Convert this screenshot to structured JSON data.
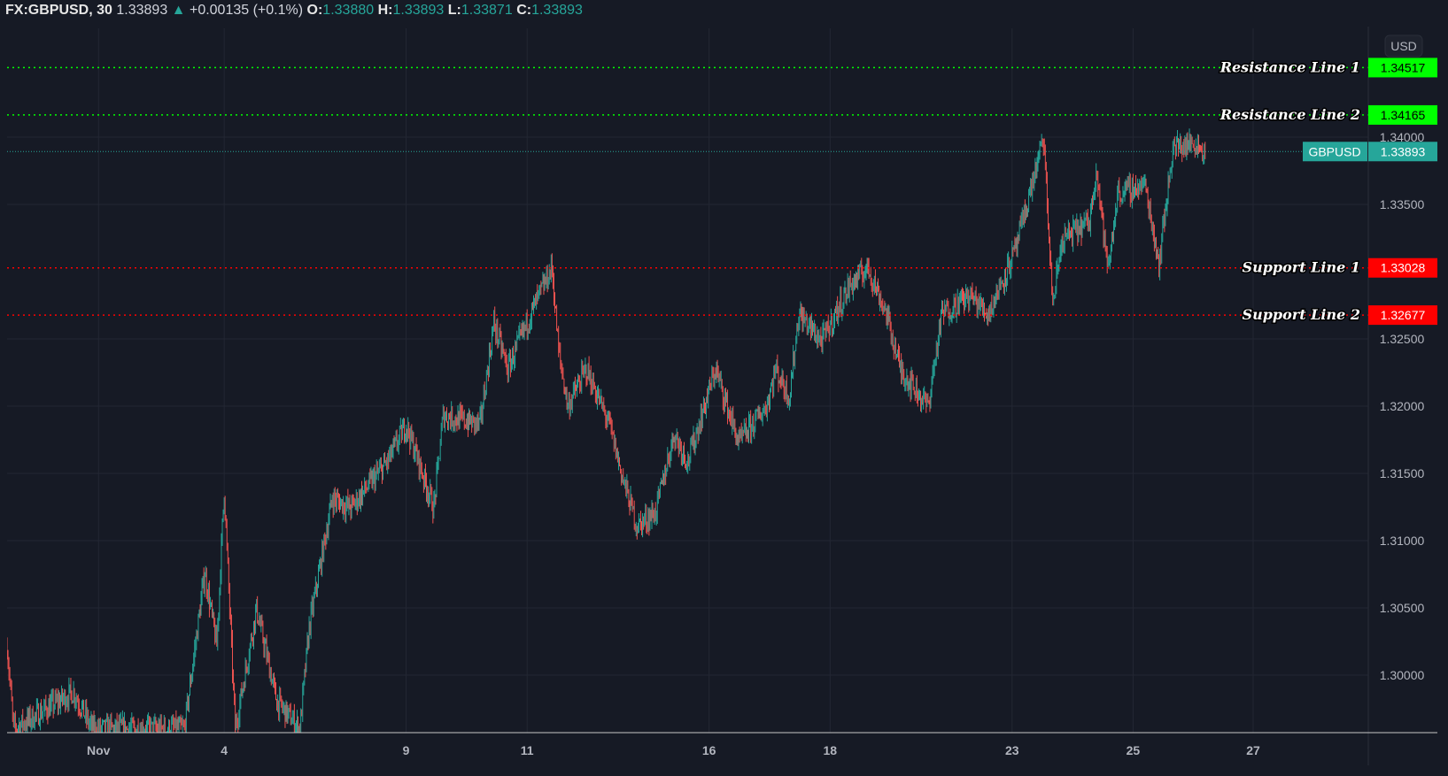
{
  "legend": {
    "symbol": "FX:GBPUSD, 30",
    "last": "1.33893",
    "change": "+0.00135 (+0.1%)",
    "o_label": "O:",
    "o": "1.33880",
    "h_label": "H:",
    "h": "1.33893",
    "l_label": "L:",
    "l": "1.33871",
    "c_label": "C:",
    "c": "1.33893"
  },
  "currency_button": "USD",
  "colors": {
    "up": "#26a69a",
    "down": "#ef5350",
    "resistance": "#00ff00",
    "support": "#ff0000",
    "current": "#26a69a"
  },
  "chart_data": {
    "type": "candlestick",
    "title": "FX:GBPUSD, 30",
    "ylim": [
      1.2957,
      1.3497
    ],
    "yticks": [
      "1.34000",
      "1.33500",
      "1.32500",
      "1.32000",
      "1.31500",
      "1.31000",
      "1.30500",
      "1.30000"
    ],
    "xrange_bars": [
      0,
      1440
    ],
    "xticks": [
      {
        "bar": 99,
        "label": "Nov"
      },
      {
        "bar": 235,
        "label": "4"
      },
      {
        "bar": 432,
        "label": "9"
      },
      {
        "bar": 563,
        "label": "11"
      },
      {
        "bar": 760,
        "label": "16"
      },
      {
        "bar": 891,
        "label": "18"
      },
      {
        "bar": 1088,
        "label": "23"
      },
      {
        "bar": 1219,
        "label": "25"
      },
      {
        "bar": 1349,
        "label": "27"
      }
    ],
    "price_path": [
      [
        0,
        1.30216
      ],
      [
        7,
        1.29599
      ],
      [
        72,
        1.29873
      ],
      [
        92,
        1.29599
      ],
      [
        192,
        1.29599
      ],
      [
        214,
        1.30765
      ],
      [
        227,
        1.30216
      ],
      [
        235,
        1.31383
      ],
      [
        247,
        1.29599
      ],
      [
        270,
        1.30491
      ],
      [
        292,
        1.29805
      ],
      [
        317,
        1.29599
      ],
      [
        327,
        1.30354
      ],
      [
        352,
        1.31314
      ],
      [
        372,
        1.31245
      ],
      [
        412,
        1.31589
      ],
      [
        432,
        1.31863
      ],
      [
        462,
        1.31245
      ],
      [
        472,
        1.31932
      ],
      [
        512,
        1.31863
      ],
      [
        527,
        1.32618
      ],
      [
        542,
        1.32275
      ],
      [
        567,
        1.32687
      ],
      [
        590,
        1.3303
      ],
      [
        597,
        1.32412
      ],
      [
        607,
        1.32
      ],
      [
        627,
        1.32275
      ],
      [
        652,
        1.31863
      ],
      [
        667,
        1.31451
      ],
      [
        682,
        1.31109
      ],
      [
        702,
        1.31211
      ],
      [
        722,
        1.31795
      ],
      [
        737,
        1.31589
      ],
      [
        767,
        1.32275
      ],
      [
        792,
        1.31726
      ],
      [
        822,
        1.32
      ],
      [
        832,
        1.32275
      ],
      [
        847,
        1.32069
      ],
      [
        857,
        1.32687
      ],
      [
        882,
        1.32481
      ],
      [
        912,
        1.32893
      ],
      [
        932,
        1.3303
      ],
      [
        952,
        1.32687
      ],
      [
        967,
        1.32275
      ],
      [
        982,
        1.32138
      ],
      [
        997,
        1.32
      ],
      [
        1012,
        1.32687
      ],
      [
        1042,
        1.32824
      ],
      [
        1062,
        1.32687
      ],
      [
        1092,
        1.33167
      ],
      [
        1112,
        1.33716
      ],
      [
        1122,
        1.3399
      ],
      [
        1132,
        1.32755
      ],
      [
        1142,
        1.33236
      ],
      [
        1172,
        1.33373
      ],
      [
        1179,
        1.33785
      ],
      [
        1192,
        1.32995
      ],
      [
        1202,
        1.33579
      ],
      [
        1232,
        1.33647
      ],
      [
        1247,
        1.33064
      ],
      [
        1262,
        1.33922
      ],
      [
        1287,
        1.33956
      ],
      [
        1297,
        1.33888
      ]
    ],
    "levels": [
      {
        "name": "Resistance Line 1",
        "price": "1.34517",
        "kind": "resistance"
      },
      {
        "name": "Resistance Line 2",
        "price": "1.34165",
        "kind": "resistance"
      },
      {
        "name": "Support Line 1",
        "price": "1.33028",
        "kind": "support"
      },
      {
        "name": "Support Line 2",
        "price": "1.32677",
        "kind": "support"
      }
    ],
    "current": {
      "name": "GBPUSD",
      "price": "1.33893"
    }
  }
}
